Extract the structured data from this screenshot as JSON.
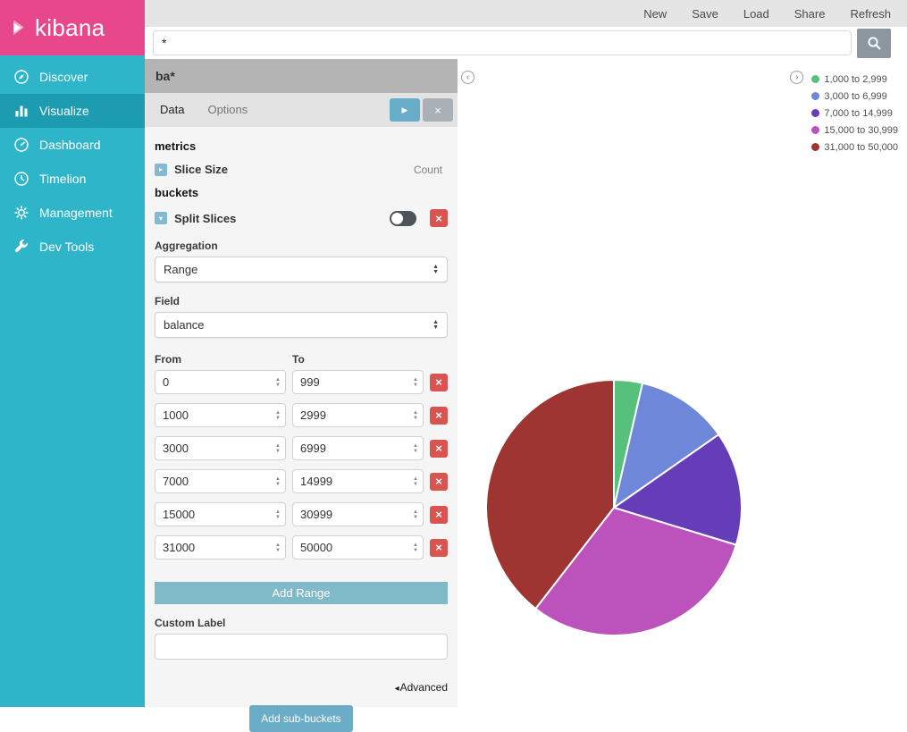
{
  "topbar": {
    "menu": [
      "New",
      "Save",
      "Load",
      "Share",
      "Refresh"
    ]
  },
  "search": {
    "value": "*"
  },
  "sidebar": {
    "logo_text": "kibana",
    "items": [
      {
        "label": "Discover",
        "icon": "discover-icon",
        "active": false
      },
      {
        "label": "Visualize",
        "icon": "visualize-icon",
        "active": true
      },
      {
        "label": "Dashboard",
        "icon": "dashboard-icon",
        "active": false
      },
      {
        "label": "Timelion",
        "icon": "timelion-icon",
        "active": false
      },
      {
        "label": "Management",
        "icon": "management-icon",
        "active": false
      },
      {
        "label": "Dev Tools",
        "icon": "devtools-icon",
        "active": false
      }
    ]
  },
  "editor": {
    "title": "ba*",
    "tabs": [
      "Data",
      "Options"
    ],
    "metrics_header": "metrics",
    "slice_size": {
      "label": "Slice Size",
      "value": "Count"
    },
    "buckets_header": "buckets",
    "split_slices_label": "Split Slices",
    "aggregation": {
      "label": "Aggregation",
      "value": "Range"
    },
    "field": {
      "label": "Field",
      "value": "balance"
    },
    "from_header": "From",
    "to_header": "To",
    "ranges": [
      {
        "from": "0",
        "to": "999"
      },
      {
        "from": "1000",
        "to": "2999"
      },
      {
        "from": "3000",
        "to": "6999"
      },
      {
        "from": "7000",
        "to": "14999"
      },
      {
        "from": "15000",
        "to": "30999"
      },
      {
        "from": "31000",
        "to": "50000"
      }
    ],
    "add_range_label": "Add Range",
    "custom_label": "Custom Label",
    "advanced_label": "Advanced",
    "add_subbuckets_label": "Add sub-buckets"
  },
  "chart_data": {
    "type": "pie",
    "title": "",
    "legend_position": "right",
    "slices": [
      {
        "label": "1,000 to 2,999",
        "color": "#57c17b",
        "percent": 3.6
      },
      {
        "label": "3,000 to 6,999",
        "color": "#6f87d8",
        "percent": 11.7
      },
      {
        "label": "7,000 to 14,999",
        "color": "#663db8",
        "percent": 14.4
      },
      {
        "label": "15,000 to 30,999",
        "color": "#bc52bc",
        "percent": 30.8
      },
      {
        "label": "31,000 to 50,000",
        "color": "#9e3533",
        "percent": 39.5
      }
    ]
  },
  "colors": {
    "sidebar": "#2eb5c9",
    "sidebar_active": "#1d9cb1",
    "logo_pink": "#e8488b",
    "danger": "#d9534f",
    "button_teal": "#6badc7"
  },
  "glyphs": {
    "caret_right": "▸",
    "caret_down": "▾",
    "play": "▶",
    "close": "×",
    "up": "▲",
    "down": "▼",
    "chevron_left": "‹",
    "chevron_right": "›",
    "advanced_arrow": "◂"
  }
}
